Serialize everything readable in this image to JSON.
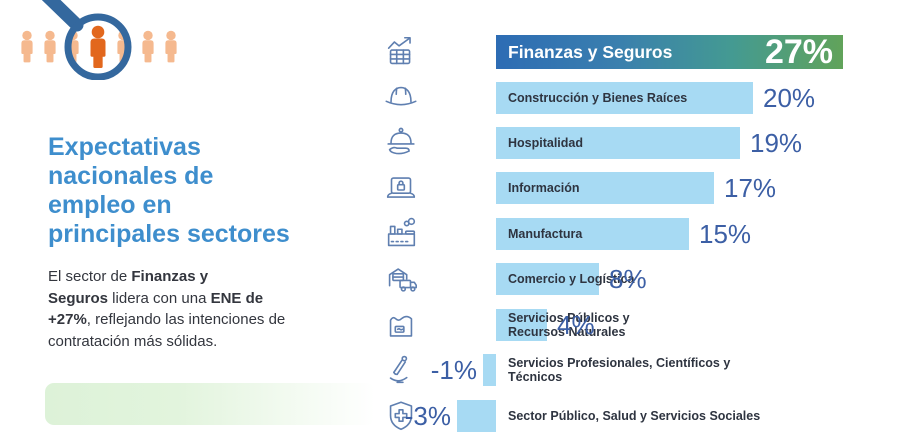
{
  "colors": {
    "title_blue": "#3e8ecd",
    "body_text": "#33363e",
    "bar_light_blue": "#a7daf3",
    "bar_gradient": [
      "#2d6cb4",
      "#449a92",
      "#61a35a"
    ],
    "value_text_blue": "#3c5fa5",
    "label_dark": "#2e3440",
    "icon_blue": "#5f7fb0",
    "green_accent": "#ddf2d8",
    "people_orange_light": "#f5b98f",
    "people_orange_dark": "#e2671d",
    "magnifier_blue": "#34689e"
  },
  "left_panel": {
    "title": "Expectativas\nnacionales de\nempleo en\nprincipales sectores",
    "paragraph": [
      {
        "text": "El sector de ",
        "bold": false
      },
      {
        "text": "Finanzas y\nSeguros",
        "bold": true
      },
      {
        "text": " lidera con una ",
        "bold": false
      },
      {
        "text": "ENE de\n+27%",
        "bold": true
      },
      {
        "text": ", reflejando las intenciones de\ncontratación más sólidas.",
        "bold": false
      }
    ],
    "illustration": "people-under-magnifier"
  },
  "chart_data": {
    "type": "bar",
    "orientation": "horizontal",
    "unit": "%",
    "value_range": [
      -3,
      27
    ],
    "grid": false,
    "legend": false,
    "rows": [
      {
        "sector": "Finanzas y Seguros",
        "value": 27,
        "display": "27%",
        "icon": "growth-chart-icon",
        "highlight": true
      },
      {
        "sector": "Construcción y Bienes Raíces",
        "value": 20,
        "display": "20%",
        "icon": "hard-hat-icon",
        "highlight": false
      },
      {
        "sector": "Hospitalidad",
        "value": 19,
        "display": "19%",
        "icon": "cloche-hand-icon",
        "highlight": false
      },
      {
        "sector": "Información",
        "value": 17,
        "display": "17%",
        "icon": "laptop-lock-icon",
        "highlight": false
      },
      {
        "sector": "Manufactura",
        "value": 15,
        "display": "15%",
        "icon": "factory-icon",
        "highlight": false
      },
      {
        "sector": "Comercio y Logística",
        "value": 8,
        "display": "8%",
        "icon": "truck-warehouse-icon",
        "highlight": false
      },
      {
        "sector": "Servicios Públicos y\nRecursos Naturales",
        "value": 4,
        "display": "4%",
        "icon": "natural-resources-icon",
        "highlight": false
      },
      {
        "sector": "Servicios Profesionales, Científicos y\nTécnicos",
        "value": -1,
        "display": "-1%",
        "icon": "microscope-icon",
        "highlight": false
      },
      {
        "sector": "Sector Público, Salud y Servicios Sociales",
        "value": -3,
        "display": "-3%",
        "icon": "shield-cross-icon",
        "highlight": false
      }
    ]
  }
}
